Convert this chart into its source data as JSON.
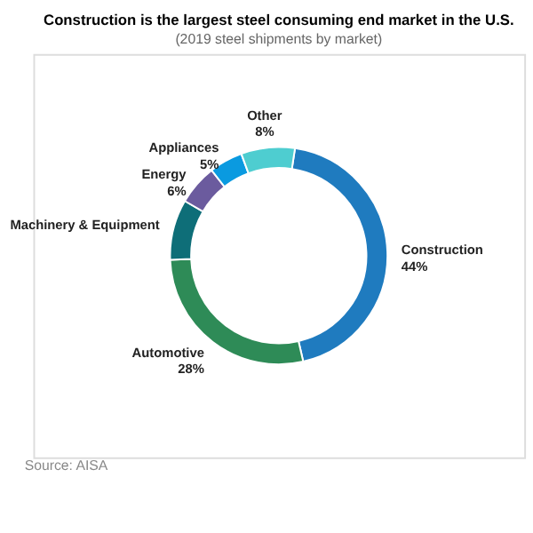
{
  "chart_data": {
    "type": "donut",
    "title": "Construction is the largest steel consuming end market in the U.S.",
    "subtitle": "(2019 steel shipments by market)",
    "categories": [
      "Construction",
      "Automotive",
      "Machinery & Equipment",
      "Energy",
      "Appliances",
      "Other"
    ],
    "values": [
      44,
      28,
      9,
      6,
      5,
      8
    ],
    "value_labels": [
      "44%",
      "28%",
      null,
      "6%",
      "5%",
      "8%"
    ],
    "colors": [
      "#1f7bbf",
      "#2e8b57",
      "#0e6e78",
      "#6b5b9e",
      "#0a9ae0",
      "#4ecdd0"
    ],
    "annotations": [
      "Source: AISA"
    ],
    "legend": false
  }
}
